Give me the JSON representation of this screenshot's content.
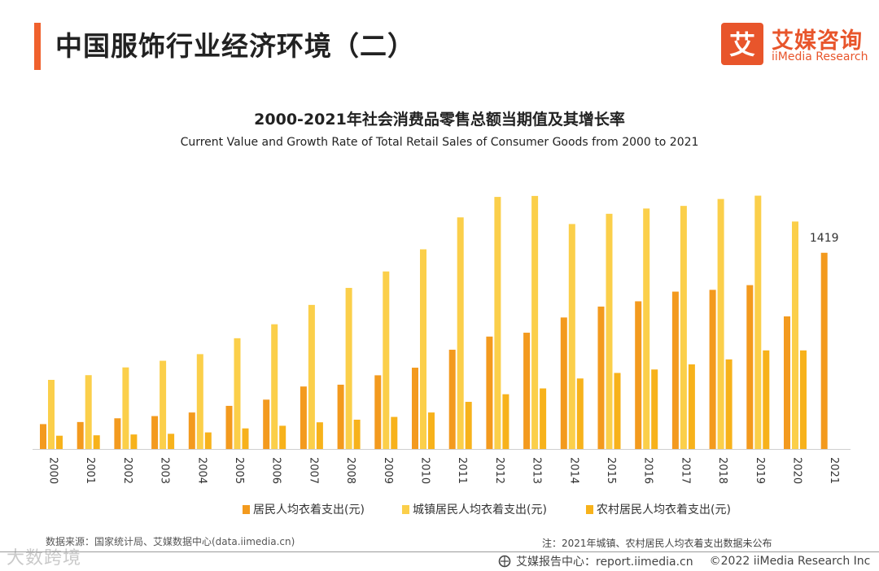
{
  "header": {
    "title": "中国服饰行业经济环境（二）",
    "logo_cn": "艾媒咨询",
    "logo_en": "iiMedia Research",
    "logo_mark": "艾"
  },
  "colors": {
    "accent": "#f0612d",
    "resident": "#f39a1e",
    "urban": "#fbcf4a",
    "rural": "#f7b21b"
  },
  "chart_data": {
    "type": "bar",
    "title": "2000-2021年社会消费品零售总额当期值及其增长率",
    "subtitle": "Current Value and Growth Rate of Total Retail Sales of Consumer Goods from 2000 to 2021",
    "categories": [
      "2000",
      "2001",
      "2002",
      "2003",
      "2004",
      "2005",
      "2006",
      "2007",
      "2008",
      "2009",
      "2010",
      "2011",
      "2012",
      "2013",
      "2014",
      "2015",
      "2016",
      "2017",
      "2018",
      "2019",
      "2020",
      "2021"
    ],
    "series": [
      {
        "name": "居民人均衣着支出(元)",
        "values": [
          180,
          195,
          222,
          238,
          264,
          312,
          357,
          452,
          465,
          533,
          588,
          718,
          813,
          841,
          951,
          1030,
          1068,
          1138,
          1151,
          1185,
          959,
          1419
        ]
      },
      {
        "name": "城镇居民人均衣着支出(元)",
        "values": [
          500,
          534,
          590,
          638,
          686,
          801,
          902,
          1042,
          1165,
          1284,
          1444,
          1675,
          1823,
          1830,
          1627,
          1701,
          1739,
          1758,
          1808,
          1832,
          1645,
          null
        ]
      },
      {
        "name": "农村居民人均衣着支出(元)",
        "values": [
          96,
          99,
          105,
          110,
          120,
          149,
          168,
          193,
          212,
          232,
          264,
          341,
          396,
          438,
          510,
          550,
          575,
          612,
          648,
          713,
          713,
          null
        ]
      }
    ],
    "ylim": [
      0,
      2000
    ],
    "grid": false,
    "legend": "bottom-center",
    "annotations": [
      {
        "category": "2021",
        "series": "居民人均衣着支出(元)",
        "text": "1419"
      }
    ]
  },
  "footer": {
    "source": "数据来源：国家统计局、艾媒数据中心(data.iimedia.cn)",
    "note": "注：2021年城镇、农村居民人均衣着支出数据未公布",
    "watermark": "大数跨境",
    "report_center": "艾媒报告中心：report.iimedia.cn",
    "copyright": "©2022  iiMedia Research  Inc"
  }
}
